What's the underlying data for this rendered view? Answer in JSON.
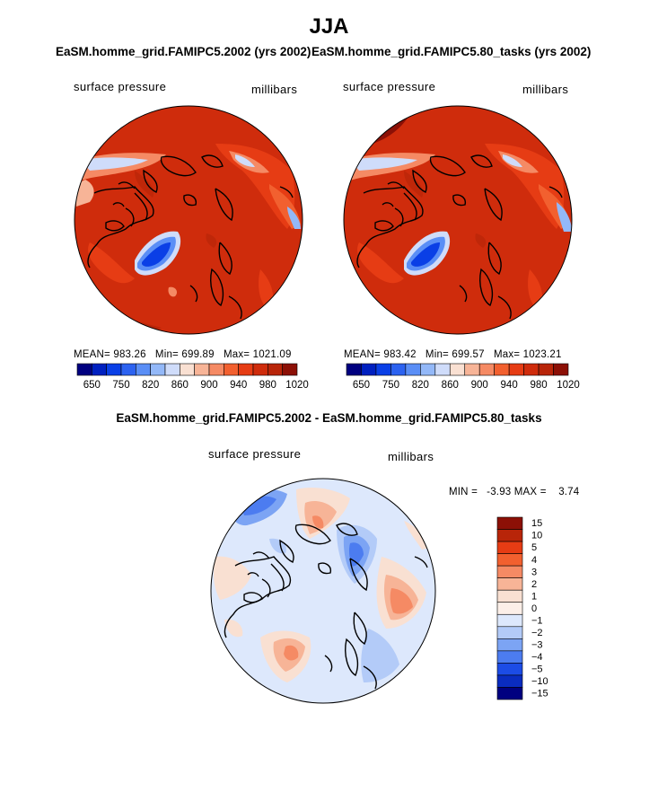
{
  "title": "JJA",
  "panels": [
    {
      "case_title": "EaSM.homme_grid.FAMIPC5.2002 (yrs 2002)",
      "variable": "surface pressure",
      "units": "millibars",
      "stats": {
        "mean_label": "MEAN=",
        "mean": "983.26",
        "min_label": "Min=",
        "min": "699.89",
        "max_label": "Max=",
        "max": "1021.09"
      }
    },
    {
      "case_title": "EaSM.homme_grid.FAMIPC5.80_tasks (yrs 2002)",
      "variable": "surface pressure",
      "units": "millibars",
      "stats": {
        "mean_label": "MEAN=",
        "mean": "983.42",
        "min_label": "Min=",
        "min": "699.57",
        "max_label": "Max=",
        "max": "1023.21"
      }
    }
  ],
  "abs_colorbar": {
    "labels": [
      "650",
      "750",
      "820",
      "860",
      "900",
      "940",
      "980",
      "1020"
    ],
    "colors": [
      "#000080",
      "#0020c0",
      "#0a3fe6",
      "#2c62f0",
      "#5a8ef6",
      "#93b8f8",
      "#cfdcfa",
      "#f9e0d2",
      "#f7b497",
      "#f58a64",
      "#f2602f",
      "#e63c14",
      "#cf2c0c",
      "#b82509",
      "#8c1006"
    ]
  },
  "diff": {
    "title": "EaSM.homme_grid.FAMIPC5.2002 - EaSM.homme_grid.FAMIPC5.80_tasks",
    "variable": "surface pressure",
    "units": "millibars",
    "stats_text": "MIN =   -3.93 MAX =    3.74",
    "colorbar": {
      "levels": [
        "15",
        "10",
        "5",
        "4",
        "3",
        "2",
        "1",
        "0",
        "−1",
        "−2",
        "−3",
        "−4",
        "−5",
        "−10",
        "−15"
      ],
      "colors": [
        "#8c1006",
        "#b82509",
        "#e63c14",
        "#f2602f",
        "#f58a64",
        "#f7b497",
        "#f9e0d2",
        "#fcefe8",
        "#dde8fc",
        "#b3cbf8",
        "#7ca4f4",
        "#4c7cf0",
        "#1c4ce6",
        "#0a2cc0",
        "#000080"
      ]
    }
  },
  "chart_data": [
    {
      "type": "heatmap",
      "projection": "polar stereographic (north pole)",
      "title": "EaSM.homme_grid.FAMIPC5.2002 (yrs 2002)",
      "variable": "surface pressure",
      "units": "millibars",
      "mean": 983.26,
      "min": 699.89,
      "max": 1021.09,
      "contour_levels": [
        650,
        700,
        750,
        800,
        820,
        840,
        860,
        880,
        900,
        920,
        940,
        960,
        980,
        1000,
        1020
      ]
    },
    {
      "type": "heatmap",
      "projection": "polar stereographic (north pole)",
      "title": "EaSM.homme_grid.FAMIPC5.80_tasks (yrs 2002)",
      "variable": "surface pressure",
      "units": "millibars",
      "mean": 983.42,
      "min": 699.57,
      "max": 1023.21,
      "contour_levels": [
        650,
        700,
        750,
        800,
        820,
        840,
        860,
        880,
        900,
        920,
        940,
        960,
        980,
        1000,
        1020
      ]
    },
    {
      "type": "heatmap",
      "projection": "polar stereographic (north pole)",
      "title": "EaSM.homme_grid.FAMIPC5.2002 - EaSM.homme_grid.FAMIPC5.80_tasks",
      "variable": "surface pressure",
      "units": "millibars",
      "min": -3.93,
      "max": 3.74,
      "contour_levels": [
        -15,
        -10,
        -5,
        -4,
        -3,
        -2,
        -1,
        0,
        1,
        2,
        3,
        4,
        5,
        10,
        15
      ]
    }
  ]
}
